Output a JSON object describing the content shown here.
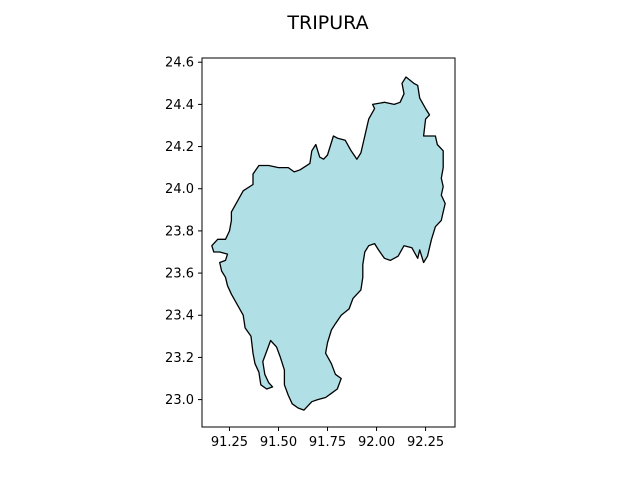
{
  "chart_data": {
    "type": "map",
    "title": "TRIPURA",
    "xlabel": "",
    "ylabel": "",
    "xlim": [
      91.11,
      92.4
    ],
    "ylim": [
      22.87,
      24.62
    ],
    "grid": false,
    "x_ticks": [
      {
        "value": 91.25,
        "label": "91.25"
      },
      {
        "value": 91.5,
        "label": "91.50"
      },
      {
        "value": 91.75,
        "label": "91.75"
      },
      {
        "value": 92.0,
        "label": "92.00"
      },
      {
        "value": 92.25,
        "label": "92.25"
      }
    ],
    "y_ticks": [
      {
        "value": 23.0,
        "label": "23.0"
      },
      {
        "value": 23.2,
        "label": "23.2"
      },
      {
        "value": 23.4,
        "label": "23.4"
      },
      {
        "value": 23.6,
        "label": "23.6"
      },
      {
        "value": 23.8,
        "label": "23.8"
      },
      {
        "value": 24.0,
        "label": "24.0"
      },
      {
        "value": 24.2,
        "label": "24.2"
      },
      {
        "value": 24.4,
        "label": "24.4"
      },
      {
        "value": 24.6,
        "label": "24.6"
      }
    ],
    "region": {
      "fill_color": "#b0e0e6",
      "edge_color": "#000000",
      "boundary": [
        [
          92.15,
          24.53
        ],
        [
          92.19,
          24.5
        ],
        [
          92.21,
          24.49
        ],
        [
          92.22,
          24.43
        ],
        [
          92.25,
          24.38
        ],
        [
          92.27,
          24.35
        ],
        [
          92.25,
          24.33
        ],
        [
          92.24,
          24.25
        ],
        [
          92.3,
          24.25
        ],
        [
          92.31,
          24.21
        ],
        [
          92.34,
          24.18
        ],
        [
          92.34,
          24.1
        ],
        [
          92.33,
          24.05
        ],
        [
          92.34,
          24.01
        ],
        [
          92.33,
          23.97
        ],
        [
          92.35,
          23.93
        ],
        [
          92.34,
          23.89
        ],
        [
          92.33,
          23.85
        ],
        [
          92.3,
          23.82
        ],
        [
          92.28,
          23.76
        ],
        [
          92.26,
          23.68
        ],
        [
          92.24,
          23.65
        ],
        [
          92.22,
          23.71
        ],
        [
          92.21,
          23.67
        ],
        [
          92.18,
          23.72
        ],
        [
          92.14,
          23.73
        ],
        [
          92.11,
          23.68
        ],
        [
          92.07,
          23.66
        ],
        [
          92.04,
          23.67
        ],
        [
          92.01,
          23.71
        ],
        [
          91.99,
          23.74
        ],
        [
          91.96,
          23.73
        ],
        [
          91.94,
          23.7
        ],
        [
          91.93,
          23.64
        ],
        [
          91.93,
          23.58
        ],
        [
          91.92,
          23.52
        ],
        [
          91.88,
          23.48
        ],
        [
          91.86,
          23.43
        ],
        [
          91.82,
          23.4
        ],
        [
          91.79,
          23.36
        ],
        [
          91.77,
          23.33
        ],
        [
          91.75,
          23.27
        ],
        [
          91.74,
          23.22
        ],
        [
          91.77,
          23.17
        ],
        [
          91.79,
          23.12
        ],
        [
          91.82,
          23.1
        ],
        [
          91.8,
          23.05
        ],
        [
          91.77,
          23.03
        ],
        [
          91.74,
          23.01
        ],
        [
          91.7,
          23.0
        ],
        [
          91.67,
          22.99
        ],
        [
          91.63,
          22.95
        ],
        [
          91.6,
          22.96
        ],
        [
          91.57,
          22.98
        ],
        [
          91.55,
          23.02
        ],
        [
          91.53,
          23.07
        ],
        [
          91.53,
          23.14
        ],
        [
          91.51,
          23.2
        ],
        [
          91.49,
          23.25
        ],
        [
          91.46,
          23.28
        ],
        [
          91.44,
          23.23
        ],
        [
          91.42,
          23.18
        ],
        [
          91.43,
          23.12
        ],
        [
          91.45,
          23.08
        ],
        [
          91.47,
          23.06
        ],
        [
          91.44,
          23.05
        ],
        [
          91.41,
          23.07
        ],
        [
          91.4,
          23.13
        ],
        [
          91.38,
          23.17
        ],
        [
          91.37,
          23.22
        ],
        [
          91.36,
          23.3
        ],
        [
          91.33,
          23.34
        ],
        [
          91.32,
          23.4
        ],
        [
          91.29,
          23.45
        ],
        [
          91.26,
          23.5
        ],
        [
          91.24,
          23.54
        ],
        [
          91.23,
          23.58
        ],
        [
          91.21,
          23.61
        ],
        [
          91.2,
          23.65
        ],
        [
          91.23,
          23.66
        ],
        [
          91.24,
          23.69
        ],
        [
          91.2,
          23.7
        ],
        [
          91.17,
          23.7
        ],
        [
          91.16,
          23.73
        ],
        [
          91.19,
          23.76
        ],
        [
          91.23,
          23.76
        ],
        [
          91.25,
          23.8
        ],
        [
          91.26,
          23.85
        ],
        [
          91.26,
          23.89
        ],
        [
          91.29,
          23.94
        ],
        [
          91.32,
          23.99
        ],
        [
          91.37,
          24.02
        ],
        [
          91.37,
          24.07
        ],
        [
          91.4,
          24.11
        ],
        [
          91.45,
          24.11
        ],
        [
          91.5,
          24.1
        ],
        [
          91.55,
          24.1
        ],
        [
          91.58,
          24.08
        ],
        [
          91.61,
          24.09
        ],
        [
          91.66,
          24.12
        ],
        [
          91.67,
          24.18
        ],
        [
          91.69,
          24.21
        ],
        [
          91.71,
          24.15
        ],
        [
          91.73,
          24.14
        ],
        [
          91.75,
          24.16
        ],
        [
          91.78,
          24.25
        ],
        [
          91.8,
          24.24
        ],
        [
          91.84,
          24.23
        ],
        [
          91.87,
          24.18
        ],
        [
          91.9,
          24.14
        ],
        [
          91.92,
          24.17
        ],
        [
          91.94,
          24.25
        ],
        [
          91.96,
          24.33
        ],
        [
          91.99,
          24.38
        ],
        [
          91.98,
          24.4
        ],
        [
          92.04,
          24.41
        ],
        [
          92.09,
          24.4
        ],
        [
          92.12,
          24.41
        ],
        [
          92.14,
          24.45
        ],
        [
          92.13,
          24.5
        ]
      ]
    }
  }
}
